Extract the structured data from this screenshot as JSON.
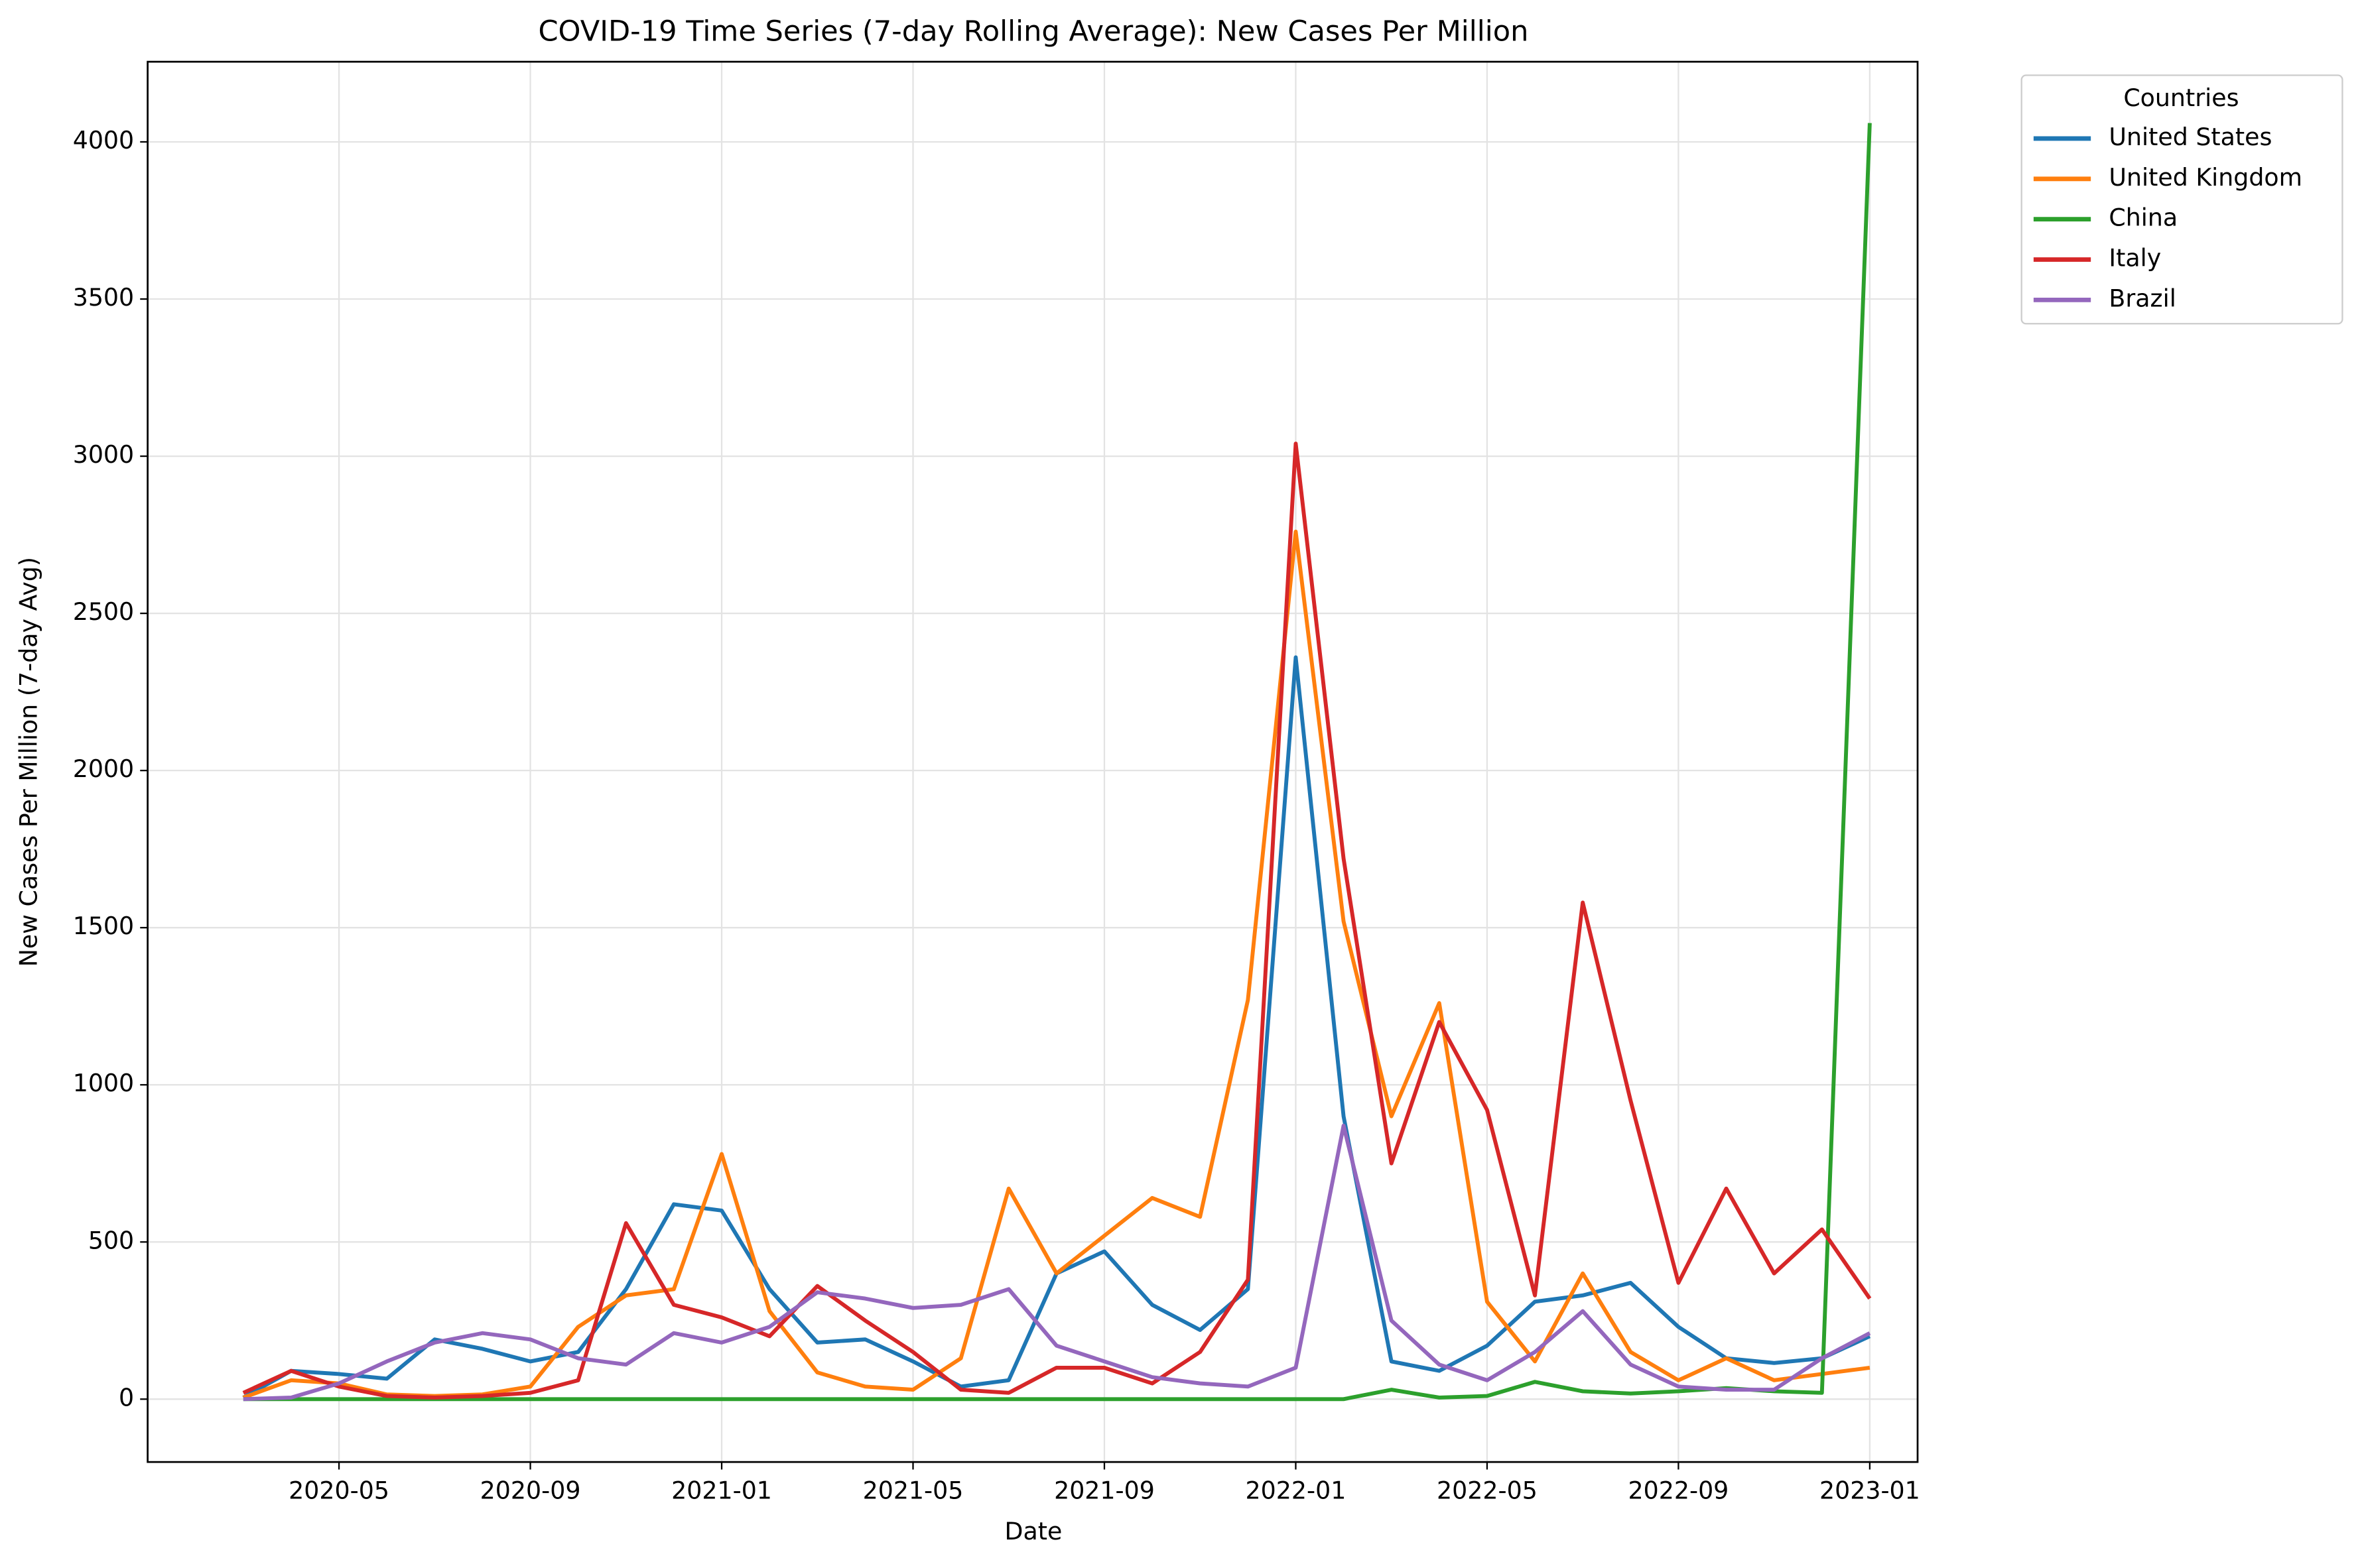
{
  "chart_data": {
    "type": "line",
    "title": "COVID-19 Time Series (7-day Rolling Average): New Cases Per Million",
    "x_label": "Date",
    "y_label": "New Cases Per Million (7-day Avg)",
    "legend_title": "Countries",
    "legend": "outside upper right",
    "grid": true,
    "x": [
      "2020-03",
      "2020-04",
      "2020-05",
      "2020-06",
      "2020-07",
      "2020-08",
      "2020-09",
      "2020-10",
      "2020-11",
      "2020-12",
      "2021-01",
      "2021-02",
      "2021-03",
      "2021-04",
      "2021-05",
      "2021-06",
      "2021-07",
      "2021-08",
      "2021-09",
      "2021-10",
      "2021-11",
      "2021-12",
      "2022-01",
      "2022-02",
      "2022-03",
      "2022-04",
      "2022-05",
      "2022-06",
      "2022-07",
      "2022-08",
      "2022-09",
      "2022-10",
      "2022-11",
      "2022-12",
      "2023-01"
    ],
    "series": [
      {
        "name": "United States",
        "color": "#1f77b4",
        "values": [
          5,
          90,
          80,
          65,
          190,
          160,
          120,
          150,
          350,
          620,
          600,
          350,
          180,
          190,
          120,
          40,
          60,
          400,
          470,
          300,
          220,
          350,
          2360,
          900,
          120,
          90,
          170,
          310,
          330,
          370,
          230,
          130,
          115,
          130,
          200
        ]
      },
      {
        "name": "United Kingdom",
        "color": "#ff7f0e",
        "values": [
          5,
          60,
          50,
          15,
          10,
          15,
          40,
          230,
          330,
          350,
          780,
          280,
          85,
          40,
          30,
          130,
          670,
          400,
          520,
          640,
          580,
          1270,
          2760,
          1520,
          900,
          1260,
          310,
          120,
          400,
          150,
          60,
          130,
          60,
          80,
          100
        ]
      },
      {
        "name": "China",
        "color": "#2ca02c",
        "values": [
          0,
          0,
          0,
          0,
          0,
          0,
          0,
          0,
          0,
          0,
          0,
          0,
          0,
          0,
          0,
          0,
          0,
          0,
          0,
          0,
          0,
          0,
          0,
          0,
          30,
          5,
          10,
          55,
          25,
          18,
          25,
          35,
          25,
          20,
          4060
        ]
      },
      {
        "name": "Italy",
        "color": "#d62728",
        "values": [
          20,
          90,
          40,
          10,
          5,
          10,
          20,
          60,
          560,
          300,
          260,
          200,
          360,
          250,
          150,
          30,
          20,
          100,
          100,
          50,
          150,
          380,
          3040,
          1720,
          750,
          1200,
          920,
          330,
          1580,
          950,
          370,
          670,
          400,
          540,
          320
        ]
      },
      {
        "name": "Brazil",
        "color": "#9467bd",
        "values": [
          0,
          5,
          50,
          120,
          180,
          210,
          190,
          130,
          110,
          210,
          180,
          230,
          340,
          320,
          290,
          300,
          350,
          170,
          120,
          70,
          50,
          40,
          100,
          870,
          250,
          110,
          60,
          150,
          280,
          110,
          40,
          30,
          30,
          130,
          210
        ]
      }
    ],
    "xlim": [
      "2020-01",
      "2023-02"
    ],
    "xticks": [
      "2020-05",
      "2020-09",
      "2021-01",
      "2021-05",
      "2021-09",
      "2022-01",
      "2022-05",
      "2022-09",
      "2023-01"
    ],
    "ylim": [
      -200,
      4255
    ],
    "yticks": [
      0,
      500,
      1000,
      1500,
      2000,
      2500,
      3000,
      3500,
      4000
    ]
  }
}
